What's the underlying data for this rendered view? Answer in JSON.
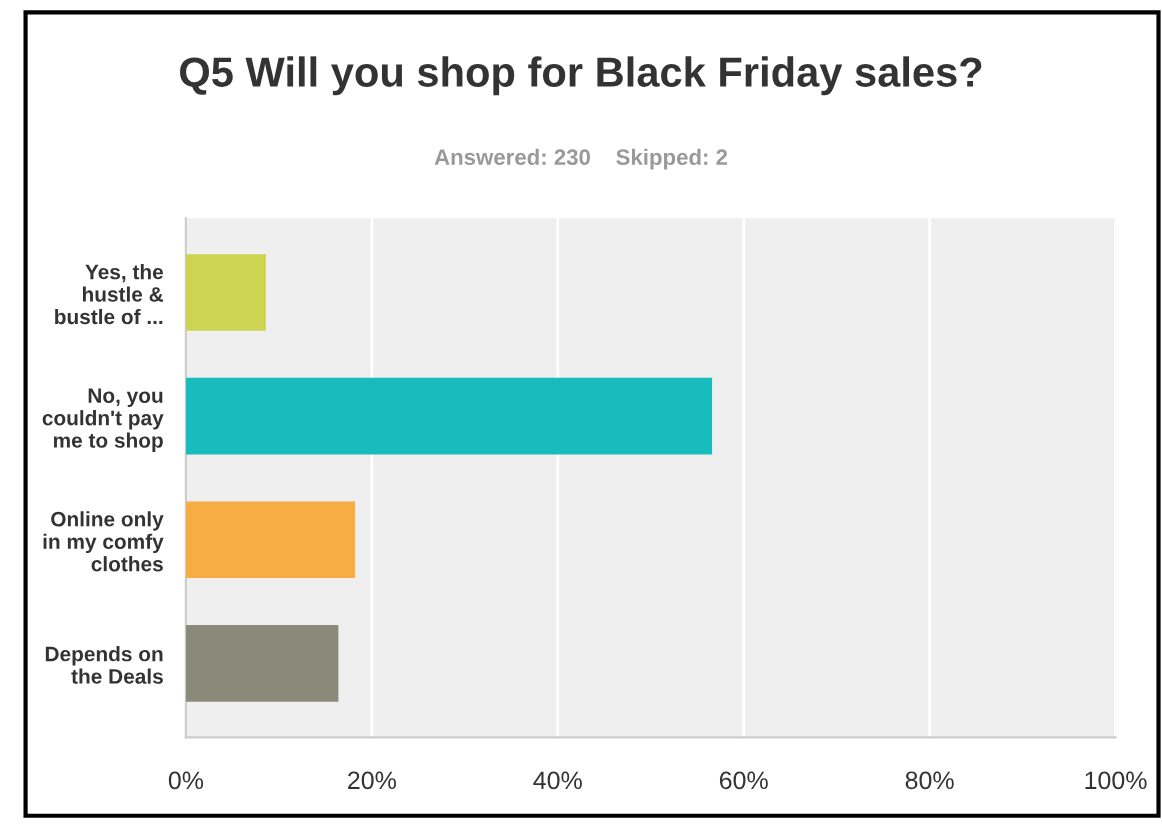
{
  "chart_data": {
    "type": "bar",
    "orientation": "horizontal",
    "title": "Q5 Will you shop for Black Friday sales?",
    "subtitle": "Answered: 230    Skipped: 2",
    "categories": [
      "Yes, the\nhustle &\nbustle of ...",
      "No, you\ncouldn't pay\nme to shop",
      "Online only\nin my comfy\nclothes",
      "Depends on\nthe Deals"
    ],
    "values": [
      8.6,
      56.6,
      18.2,
      16.4
    ],
    "colors": [
      "#ccd452",
      "#19bcbd",
      "#f8ac44",
      "#8a8a7a"
    ],
    "xlim": [
      0,
      100
    ],
    "xticks": [
      {
        "value": 0,
        "label": "0%"
      },
      {
        "value": 20,
        "label": "20%"
      },
      {
        "value": 40,
        "label": "40%"
      },
      {
        "value": 60,
        "label": "60%"
      },
      {
        "value": 80,
        "label": "80%"
      },
      {
        "value": 100,
        "label": "100%"
      }
    ],
    "grid": "x"
  }
}
